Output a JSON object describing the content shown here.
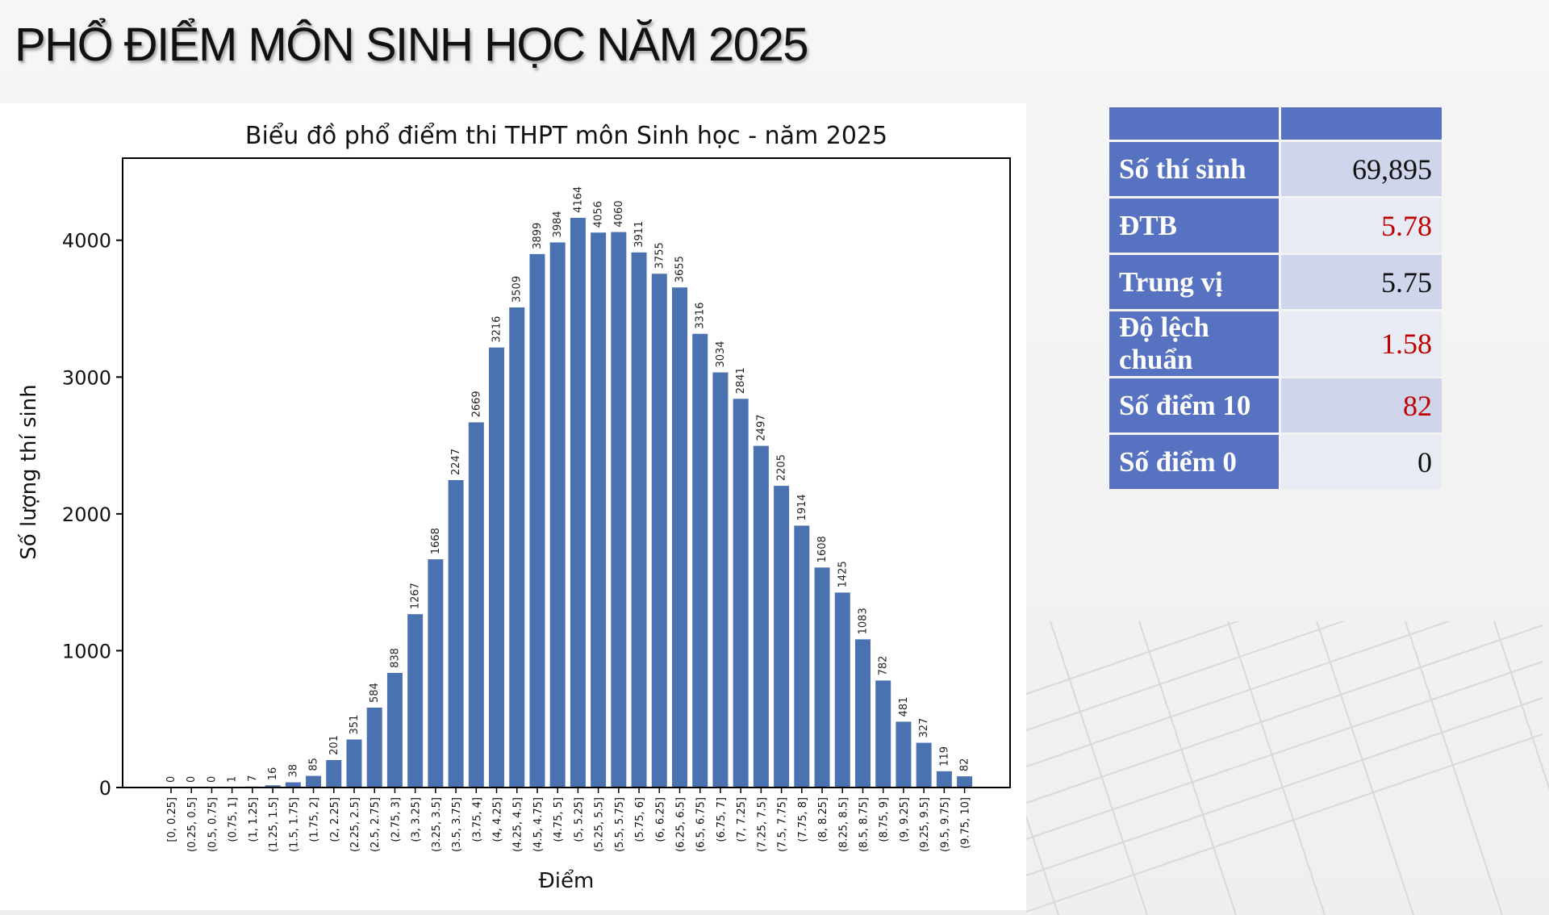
{
  "title": "PHỔ ĐIỂM MÔN SINH HỌC NĂM 2025",
  "stats": {
    "header": [
      "",
      ""
    ],
    "rows": [
      {
        "label": "Số thí sinh",
        "value": "69,895",
        "color": "#111111"
      },
      {
        "label": "ĐTB",
        "value": "5.78",
        "color": "#c00000"
      },
      {
        "label": "Trung vị",
        "value": "5.75",
        "color": "#111111"
      },
      {
        "label": "Độ lệch chuẩn",
        "value": "1.58",
        "color": "#c00000"
      },
      {
        "label": "Số điểm 10",
        "value": "82",
        "color": "#c00000"
      },
      {
        "label": "Số điểm 0",
        "value": "0",
        "color": "#111111"
      }
    ]
  },
  "chart_data": {
    "type": "bar",
    "title": "Biểu đồ phổ điểm thi THPT môn Sinh học - năm 2025",
    "xlabel": "Điểm",
    "ylabel": "Số lượng thí sinh",
    "ylim": [
      0,
      4600
    ],
    "yticks": [
      0,
      1000,
      2000,
      3000,
      4000
    ],
    "bar_color": "#4a72b0",
    "categories": [
      "[0, 0.25]",
      "(0.25, 0.5]",
      "(0.5, 0.75]",
      "(0.75, 1]",
      "(1, 1.25]",
      "(1.25, 1.5]",
      "(1.5, 1.75]",
      "(1.75, 2]",
      "(2, 2.25]",
      "(2.25, 2.5]",
      "(2.5, 2.75]",
      "(2.75, 3]",
      "(3, 3.25]",
      "(3.25, 3.5]",
      "(3.5, 3.75]",
      "(3.75, 4]",
      "(4, 4.25]",
      "(4.25, 4.5]",
      "(4.5, 4.75]",
      "(4.75, 5]",
      "(5, 5.25]",
      "(5.25, 5.5]",
      "(5.5, 5.75]",
      "(5.75, 6]",
      "(6, 6.25]",
      "(6.25, 6.5]",
      "(6.5, 6.75]",
      "(6.75, 7]",
      "(7, 7.25]",
      "(7.25, 7.5]",
      "(7.5, 7.75]",
      "(7.75, 8]",
      "(8, 8.25]",
      "(8.25, 8.5]",
      "(8.5, 8.75]",
      "(8.75, 9]",
      "(9, 9.25]",
      "(9.25, 9.5]",
      "(9.5, 9.75]",
      "(9.75, 10]"
    ],
    "values": [
      0,
      0,
      0,
      1,
      7,
      16,
      38,
      85,
      201,
      351,
      584,
      838,
      1267,
      1668,
      2247,
      2669,
      3216,
      3509,
      3899,
      3984,
      4164,
      4056,
      4060,
      3911,
      3755,
      3655,
      3316,
      3034,
      2841,
      2497,
      2205,
      1914,
      1608,
      1425,
      1083,
      782,
      481,
      327,
      119,
      82
    ]
  }
}
